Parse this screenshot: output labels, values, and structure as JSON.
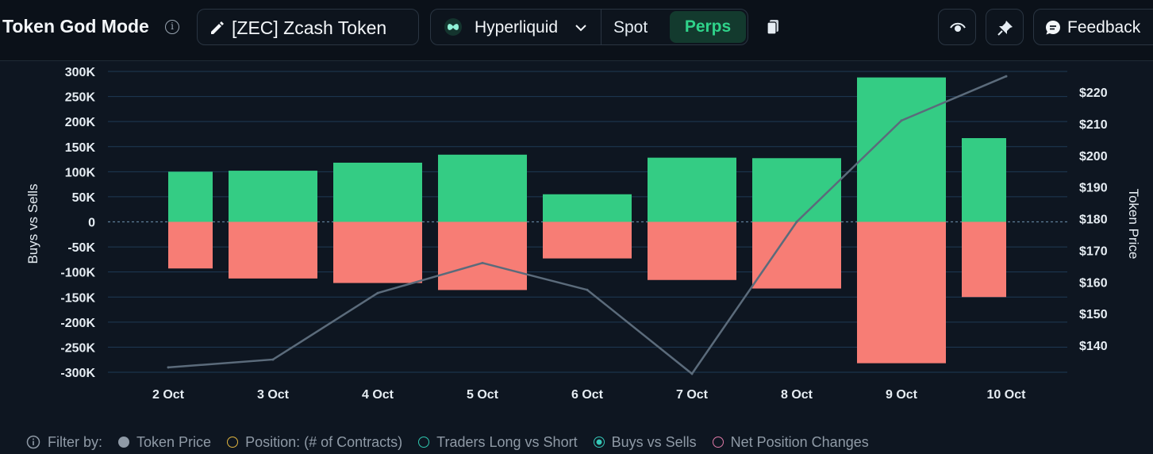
{
  "header": {
    "title": "Token God Mode",
    "token_label": "[ZEC] Zcash Token",
    "venue": "Hyperliquid",
    "spot_label": "Spot",
    "perps_label": "Perps",
    "feedback_label": "Feedback"
  },
  "chart_data": {
    "type": "bar",
    "categories": [
      "2 Oct",
      "3 Oct",
      "4 Oct",
      "5 Oct",
      "6 Oct",
      "7 Oct",
      "8 Oct",
      "9 Oct",
      "10 Oct"
    ],
    "series": [
      {
        "name": "Buys",
        "color": "#34cc84",
        "values": [
          100000,
          102000,
          118000,
          134000,
          55000,
          128000,
          127000,
          288000,
          167000
        ]
      },
      {
        "name": "Sells",
        "color": "#f77d75",
        "values": [
          -93000,
          -113000,
          -122000,
          -136000,
          -73000,
          -116000,
          -133000,
          -282000,
          -150000
        ]
      },
      {
        "name": "Token Price",
        "color": "#5b6b7b",
        "axis": "right",
        "values": [
          133,
          135.5,
          156.5,
          166,
          157.5,
          131,
          179,
          211,
          225
        ]
      }
    ],
    "ylabel": "Buys vs Sells",
    "y2label": "Token Price",
    "ylim": [
      -300000,
      300000
    ],
    "y2lim": [
      131,
      225
    ],
    "yticks": [
      "300K",
      "250K",
      "200K",
      "150K",
      "100K",
      "50K",
      "0",
      "-50K",
      "-100K",
      "-150K",
      "-200K",
      "-250K",
      "-300K"
    ],
    "y2ticks": [
      "$220",
      "$210",
      "$200",
      "$190",
      "$180",
      "$170",
      "$160",
      "$150",
      "$140"
    ],
    "grid": true
  },
  "filters": {
    "label": "Filter by:",
    "items": [
      {
        "label": "Token Price",
        "color": "#8f9aa6",
        "active": true
      },
      {
        "label": "Position: (# of Contracts)",
        "color": "#e0b540",
        "active": false
      },
      {
        "label": "Traders Long vs Short",
        "color": "#2fc8b0",
        "active": false
      },
      {
        "label": "Buys vs Sells",
        "color": "#35c8b8",
        "active": true
      },
      {
        "label": "Net Position Changes",
        "color": "#e07aa8",
        "active": false
      }
    ]
  }
}
